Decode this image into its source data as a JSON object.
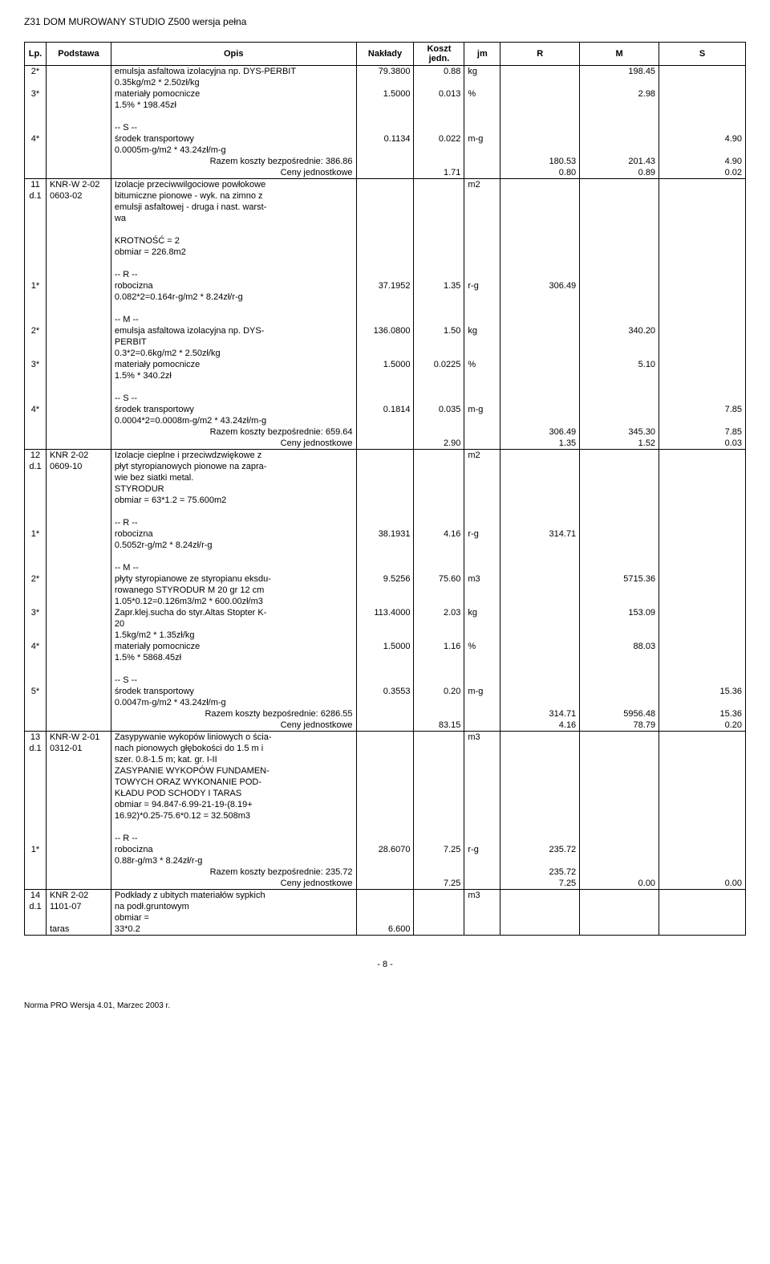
{
  "header": {
    "title": "Z31  DOM MUROWANY STUDIO Z500 wersja pełna"
  },
  "columns": {
    "lp": "Lp.",
    "podstawa": "Podstawa",
    "opis": "Opis",
    "naklady": "Nakłady",
    "koszt": "Koszt jedn.",
    "jm": "jm",
    "r": "R",
    "m": "M",
    "s": "S"
  },
  "rows": [
    {
      "lp": "2*",
      "opis": "emulsja asfaltowa izolacyjna np. DYS-PERBIT",
      "naklady": "79.3800",
      "koszt": "0.88",
      "jm": "kg",
      "m": "198.45"
    },
    {
      "opis": "0.35kg/m2 * 2.50zł/kg"
    },
    {
      "lp": "3*",
      "opis": "materiały pomocnicze",
      "naklady": "1.5000",
      "koszt": "0.013",
      "jm": "%",
      "m": "2.98"
    },
    {
      "opis": "1.5% * 198.45zł"
    },
    {
      "spacer": true
    },
    {
      "opis": "-- S --"
    },
    {
      "lp": "4*",
      "opis": "środek transportowy",
      "naklady": "0.1134",
      "koszt": "0.022",
      "jm": "m-g",
      "s": "4.90"
    },
    {
      "opis": "0.0005m-g/m2 * 43.24zł/m-g"
    },
    {
      "sum": true,
      "opis": "Razem koszty bezpośrednie: 386.86",
      "r": "180.53",
      "m": "201.43",
      "s": "4.90"
    },
    {
      "sum": true,
      "opis": "Ceny jednostkowe",
      "koszt": "1.71",
      "r": "0.80",
      "m": "0.89",
      "s": "0.02"
    },
    {
      "lp": "11",
      "pod": "KNR-W 2-02",
      "opis": "Izolacje przeciwwilgociowe powłokowe",
      "jm": "m2",
      "newrow": true
    },
    {
      "lp": "d.1",
      "pod": "0603-02",
      "opis": "bitumiczne pionowe - wyk. na zimno z"
    },
    {
      "opis": "emulsji asfaltowej - druga i nast. warst-"
    },
    {
      "opis": "wa"
    },
    {
      "spacer": true
    },
    {
      "opis": "KROTNOŚĆ = 2"
    },
    {
      "opis": "obmiar = 226.8m2"
    },
    {
      "spacer": true
    },
    {
      "opis": "-- R --"
    },
    {
      "lp": "1*",
      "opis": "robocizna",
      "naklady": "37.1952",
      "koszt": "1.35",
      "jm": "r-g",
      "r": "306.49"
    },
    {
      "opis": "0.082*2=0.164r-g/m2 * 8.24zł/r-g"
    },
    {
      "spacer": true
    },
    {
      "opis": "-- M --"
    },
    {
      "lp": "2*",
      "opis": "emulsja asfaltowa izolacyjna np. DYS-",
      "naklady": "136.0800",
      "koszt": "1.50",
      "jm": "kg",
      "m": "340.20"
    },
    {
      "opis": "PERBIT"
    },
    {
      "opis": "0.3*2=0.6kg/m2 * 2.50zł/kg"
    },
    {
      "lp": "3*",
      "opis": "materiały pomocnicze",
      "naklady": "1.5000",
      "koszt": "0.0225",
      "jm": "%",
      "m": "5.10"
    },
    {
      "opis": "1.5% * 340.2zł"
    },
    {
      "spacer": true
    },
    {
      "opis": "-- S --"
    },
    {
      "lp": "4*",
      "opis": "środek transportowy",
      "naklady": "0.1814",
      "koszt": "0.035",
      "jm": "m-g",
      "s": "7.85"
    },
    {
      "opis": "0.0004*2=0.0008m-g/m2 * 43.24zł/m-g"
    },
    {
      "sum": true,
      "opis": "Razem koszty bezpośrednie: 659.64",
      "r": "306.49",
      "m": "345.30",
      "s": "7.85"
    },
    {
      "sum": true,
      "opis": "Ceny jednostkowe",
      "koszt": "2.90",
      "r": "1.35",
      "m": "1.52",
      "s": "0.03"
    },
    {
      "lp": "12",
      "pod": "KNR 2-02",
      "opis": "Izolacje cieplne i przeciwdzwiękowe z",
      "jm": "m2",
      "newrow": true
    },
    {
      "lp": "d.1",
      "pod": "0609-10",
      "opis": "płyt styropianowych pionowe na zapra-"
    },
    {
      "opis": "wie bez siatki metal."
    },
    {
      "opis": "STYRODUR"
    },
    {
      "opis": "obmiar = 63*1.2 = 75.600m2"
    },
    {
      "spacer": true
    },
    {
      "opis": "-- R --"
    },
    {
      "lp": "1*",
      "opis": "robocizna",
      "naklady": "38.1931",
      "koszt": "4.16",
      "jm": "r-g",
      "r": "314.71"
    },
    {
      "opis": "0.5052r-g/m2 * 8.24zł/r-g"
    },
    {
      "spacer": true
    },
    {
      "opis": "-- M --"
    },
    {
      "lp": "2*",
      "opis": "płyty styropianowe ze styropianu eksdu-",
      "naklady": "9.5256",
      "koszt": "75.60",
      "jm": "m3",
      "m": "5715.36"
    },
    {
      "opis": "rowanego STYRODUR M 20  gr 12 cm"
    },
    {
      "opis": "1.05*0.12=0.126m3/m2 * 600.00zł/m3"
    },
    {
      "lp": "3*",
      "opis": "Zapr.klej.sucha do styr.Altas Stopter K-",
      "naklady": "113.4000",
      "koszt": "2.03",
      "jm": "kg",
      "m": "153.09"
    },
    {
      "opis": "20"
    },
    {
      "opis": "1.5kg/m2 * 1.35zł/kg"
    },
    {
      "lp": "4*",
      "opis": "materiały pomocnicze",
      "naklady": "1.5000",
      "koszt": "1.16",
      "jm": "%",
      "m": "88.03"
    },
    {
      "opis": "1.5% * 5868.45zł"
    },
    {
      "spacer": true
    },
    {
      "opis": "-- S --"
    },
    {
      "lp": "5*",
      "opis": "środek transportowy",
      "naklady": "0.3553",
      "koszt": "0.20",
      "jm": "m-g",
      "s": "15.36"
    },
    {
      "opis": "0.0047m-g/m2 * 43.24zł/m-g"
    },
    {
      "sum": true,
      "opis": "Razem koszty bezpośrednie: 6286.55",
      "r": "314.71",
      "m": "5956.48",
      "s": "15.36"
    },
    {
      "sum": true,
      "opis": "Ceny jednostkowe",
      "koszt": "83.15",
      "r": "4.16",
      "m": "78.79",
      "s": "0.20"
    },
    {
      "lp": "13",
      "pod": "KNR-W 2-01",
      "opis": "Zasypywanie wykopów liniowych o ścia-",
      "jm": "m3",
      "newrow": true
    },
    {
      "lp": "d.1",
      "pod": "0312-01",
      "opis": "nach pionowych głębokości do 1.5 m i"
    },
    {
      "opis": "szer. 0.8-1.5 m; kat. gr. I-II"
    },
    {
      "opis": "ZASYPANIE WYKOPÓW FUNDAMEN-"
    },
    {
      "opis": "TOWYCH ORAZ WYKONANIE POD-"
    },
    {
      "opis": "KŁADU POD SCHODY I TARAS"
    },
    {
      "opis": "obmiar = 94.847-6.99-21-19-(8.19+"
    },
    {
      "opis": "16.92)*0.25-75.6*0.12 = 32.508m3"
    },
    {
      "spacer": true
    },
    {
      "opis": "-- R --"
    },
    {
      "lp": "1*",
      "opis": "robocizna",
      "naklady": "28.6070",
      "koszt": "7.25",
      "jm": "r-g",
      "r": "235.72"
    },
    {
      "opis": "0.88r-g/m3 * 8.24zł/r-g"
    },
    {
      "sum": true,
      "opis": "Razem koszty bezpośrednie: 235.72",
      "r": "235.72"
    },
    {
      "sum": true,
      "opis": "Ceny jednostkowe",
      "koszt": "7.25",
      "r": "7.25",
      "m": "0.00",
      "s": "0.00"
    },
    {
      "lp": "14",
      "pod": "KNR 2-02",
      "opis": "Podkłady z ubitych materiałów sypkich",
      "jm": "m3",
      "newrow": true
    },
    {
      "lp": "d.1",
      "pod": "1101-07",
      "opis": "na podł.gruntowym"
    },
    {
      "opis": "obmiar ="
    },
    {
      "pod": "taras",
      "opis": "33*0.2",
      "naklady": "6.600",
      "last": true
    }
  ],
  "footer": {
    "page": "- 8 -",
    "version": "Norma PRO Wersja 4.01, Marzec 2003 r."
  }
}
